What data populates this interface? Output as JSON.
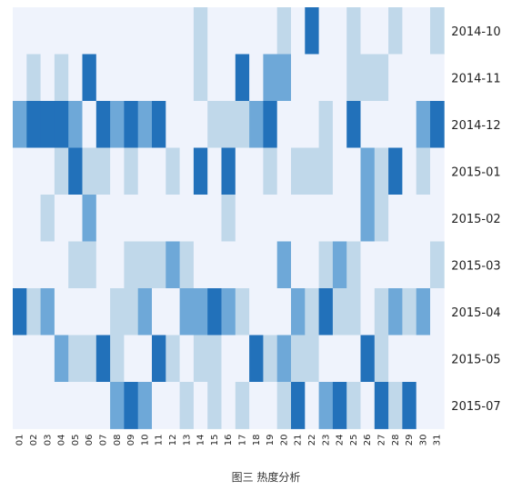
{
  "chart_data": {
    "type": "heatmap",
    "months": [
      "2014-10",
      "2014-11",
      "2014-12",
      "2015-01",
      "2015-02",
      "2015-03",
      "2015-04",
      "2015-05",
      "2015-07"
    ],
    "days": [
      "01",
      "02",
      "03",
      "04",
      "05",
      "06",
      "07",
      "08",
      "09",
      "10",
      "11",
      "12",
      "13",
      "14",
      "15",
      "16",
      "17",
      "18",
      "19",
      "20",
      "21",
      "22",
      "23",
      "24",
      "25",
      "26",
      "27",
      "28",
      "29",
      "30",
      "31"
    ],
    "values": [
      [
        0,
        0,
        0,
        0,
        0,
        0,
        0,
        0,
        0,
        0,
        0,
        0,
        0,
        1,
        0,
        0,
        0,
        0,
        0,
        1,
        0,
        3,
        0,
        0,
        1,
        0,
        0,
        1,
        0,
        0,
        1
      ],
      [
        0,
        1,
        0,
        1,
        0,
        3,
        0,
        0,
        0,
        0,
        0,
        0,
        0,
        1,
        0,
        0,
        3,
        0,
        2,
        2,
        0,
        0,
        0,
        0,
        1,
        1,
        1,
        0,
        0,
        0,
        0
      ],
      [
        2,
        3,
        3,
        3,
        2,
        0,
        3,
        2,
        3,
        2,
        3,
        0,
        0,
        0,
        1,
        1,
        1,
        2,
        3,
        0,
        0,
        0,
        1,
        0,
        3,
        0,
        0,
        0,
        0,
        2,
        3
      ],
      [
        0,
        0,
        0,
        1,
        3,
        1,
        1,
        0,
        1,
        0,
        0,
        1,
        0,
        3,
        0,
        3,
        0,
        0,
        1,
        0,
        1,
        1,
        1,
        0,
        0,
        2,
        1,
        3,
        0,
        1,
        0
      ],
      [
        0,
        0,
        1,
        0,
        0,
        2,
        0,
        0,
        0,
        0,
        0,
        0,
        0,
        0,
        0,
        1,
        0,
        0,
        0,
        0,
        0,
        0,
        0,
        0,
        0,
        2,
        1,
        0,
        0,
        0,
        0
      ],
      [
        0,
        0,
        0,
        0,
        1,
        1,
        0,
        0,
        1,
        1,
        1,
        2,
        1,
        0,
        0,
        0,
        0,
        0,
        0,
        2,
        0,
        0,
        1,
        2,
        1,
        0,
        0,
        0,
        0,
        0,
        1
      ],
      [
        3,
        1,
        2,
        0,
        0,
        0,
        0,
        1,
        1,
        2,
        0,
        0,
        2,
        2,
        3,
        2,
        1,
        0,
        0,
        0,
        2,
        1,
        3,
        1,
        1,
        0,
        1,
        2,
        1,
        2,
        0
      ],
      [
        0,
        0,
        0,
        2,
        1,
        1,
        3,
        1,
        0,
        0,
        3,
        1,
        0,
        1,
        1,
        0,
        0,
        3,
        1,
        2,
        1,
        1,
        0,
        0,
        0,
        3,
        1,
        0,
        0,
        0,
        0
      ],
      [
        0,
        0,
        0,
        0,
        0,
        0,
        0,
        2,
        3,
        2,
        0,
        0,
        1,
        0,
        1,
        0,
        1,
        0,
        0,
        1,
        3,
        0,
        2,
        3,
        1,
        0,
        3,
        1,
        3,
        0,
        0
      ]
    ],
    "color_scale": [
      "#eff3fc",
      "#c0d8ea",
      "#6ea8d8",
      "#2271ba"
    ]
  },
  "caption": "图三  热度分析"
}
